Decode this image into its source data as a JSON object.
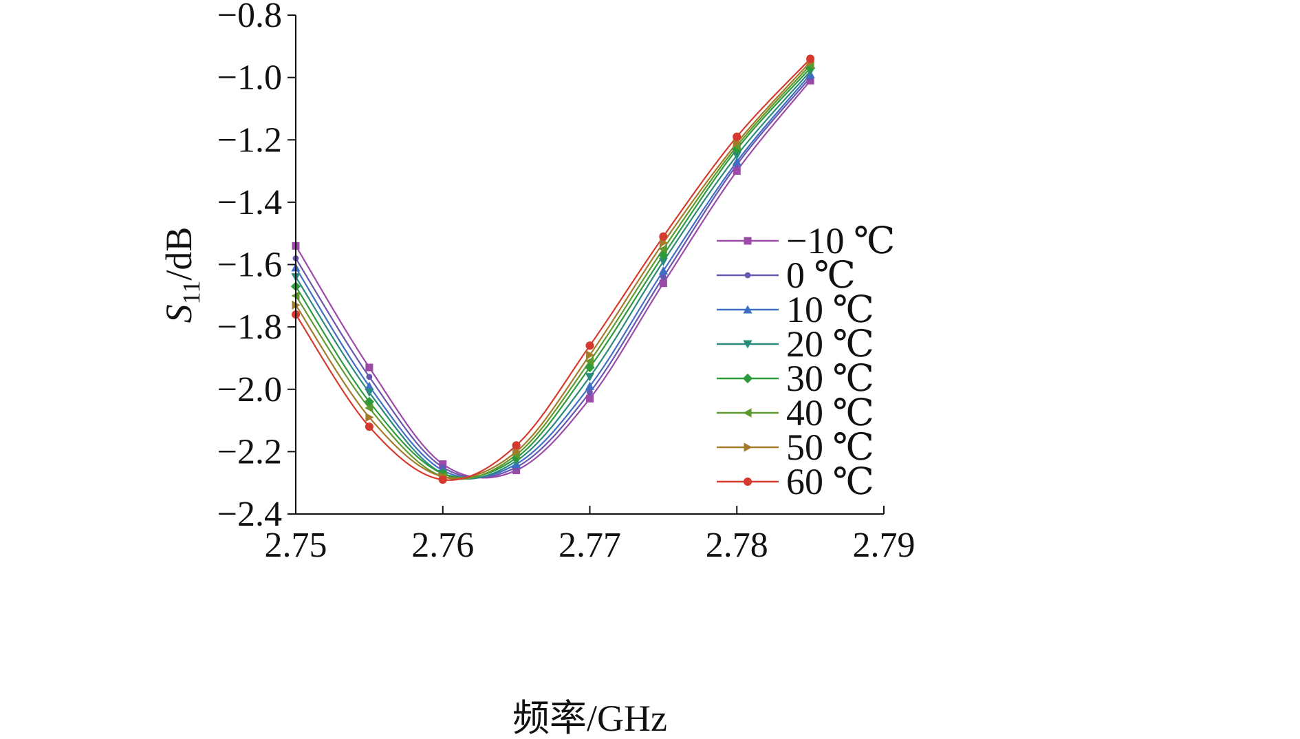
{
  "chart_data": {
    "type": "line",
    "title": "",
    "xlabel": "频率/GHz",
    "ylabel": {
      "main": "S",
      "sub": "11",
      "suffix": "/dB"
    },
    "xlim": [
      2.75,
      2.79
    ],
    "ylim": [
      -2.4,
      -0.8
    ],
    "x_ticks": [
      2.75,
      2.76,
      2.77,
      2.78,
      2.79
    ],
    "x_tick_labels": [
      "2.75",
      "2.76",
      "2.77",
      "2.78",
      "2.79"
    ],
    "y_ticks": [
      -0.8,
      -1.0,
      -1.2,
      -1.4,
      -1.6,
      -1.8,
      -2.0,
      -2.2,
      -2.4
    ],
    "y_tick_labels": [
      "−0.8",
      "−1.0",
      "−1.2",
      "−1.4",
      "−1.6",
      "−1.8",
      "−2.0",
      "−2.2",
      "−2.4"
    ],
    "grid": false,
    "legend_position": "right",
    "x": [
      2.75,
      2.755,
      2.76,
      2.765,
      2.77,
      2.775,
      2.78,
      2.785
    ],
    "series": [
      {
        "name": "−10 ℃",
        "color": "#9b4aa8",
        "marker": "square",
        "values": [
          -1.54,
          -1.93,
          -2.24,
          -2.26,
          -2.03,
          -1.66,
          -1.3,
          -1.01
        ]
      },
      {
        "name": "0 ℃",
        "color": "#6a55b0",
        "marker": "circle-small",
        "values": [
          -1.58,
          -1.96,
          -2.25,
          -2.25,
          -2.01,
          -1.64,
          -1.28,
          -1.0
        ]
      },
      {
        "name": "10 ℃",
        "color": "#3f6fc4",
        "marker": "triangle-up",
        "values": [
          -1.61,
          -1.99,
          -2.26,
          -2.24,
          -1.99,
          -1.62,
          -1.27,
          -0.99
        ]
      },
      {
        "name": "20 ℃",
        "color": "#2a8a7c",
        "marker": "triangle-down",
        "values": [
          -1.64,
          -2.01,
          -2.27,
          -2.23,
          -1.96,
          -1.59,
          -1.25,
          -0.98
        ]
      },
      {
        "name": "30 ℃",
        "color": "#2d9a3c",
        "marker": "diamond",
        "values": [
          -1.67,
          -2.04,
          -2.27,
          -2.22,
          -1.93,
          -1.57,
          -1.23,
          -0.97
        ]
      },
      {
        "name": "40 ℃",
        "color": "#5f9a2e",
        "marker": "triangle-left",
        "values": [
          -1.7,
          -2.06,
          -2.28,
          -2.21,
          -1.91,
          -1.55,
          -1.22,
          -0.96
        ]
      },
      {
        "name": "50 ℃",
        "color": "#a57a2a",
        "marker": "triangle-right",
        "values": [
          -1.73,
          -2.09,
          -2.28,
          -2.2,
          -1.89,
          -1.53,
          -1.21,
          -0.95
        ]
      },
      {
        "name": "60 ℃",
        "color": "#d63a2e",
        "marker": "circle",
        "values": [
          -1.76,
          -2.12,
          -2.29,
          -2.18,
          -1.86,
          -1.51,
          -1.19,
          -0.94
        ]
      }
    ]
  }
}
